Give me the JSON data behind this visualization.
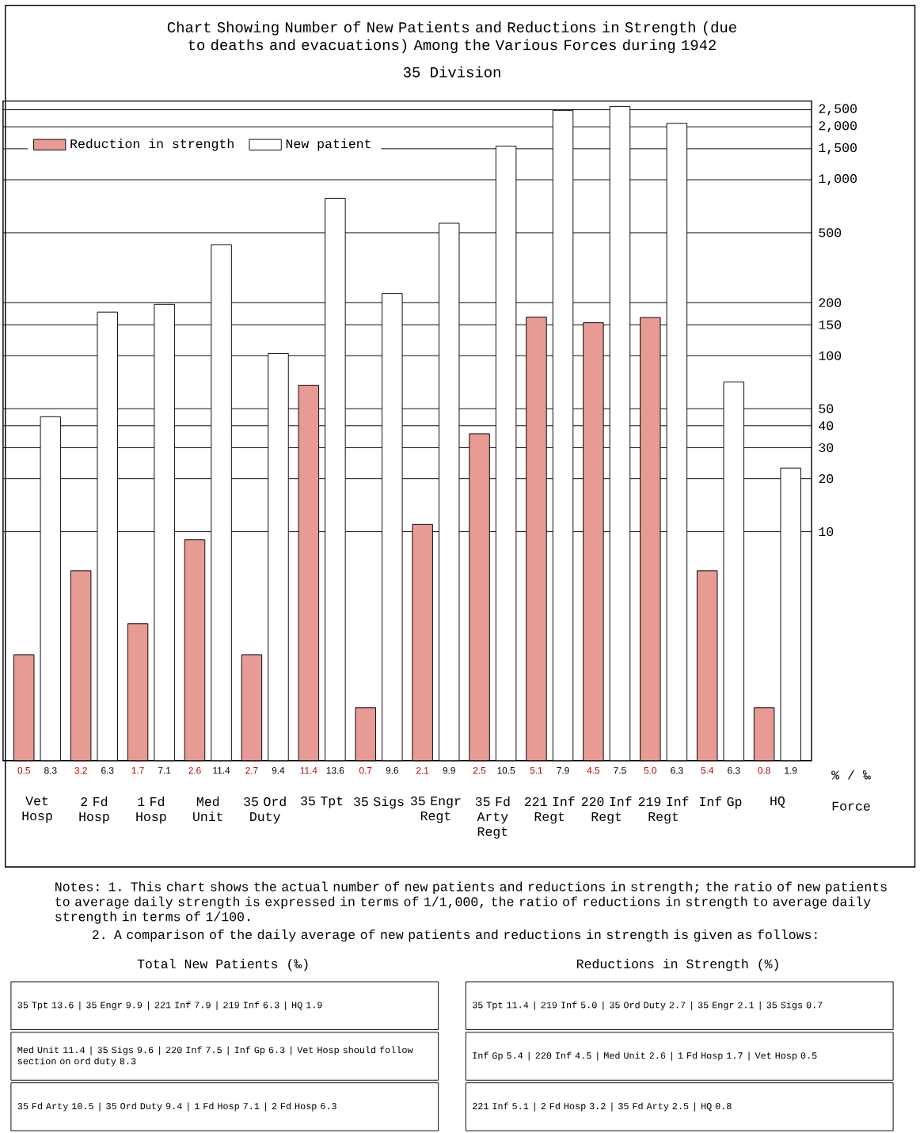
{
  "chart_data": {
    "type": "bar",
    "title": "Chart Showing Number of New Patients and Reductions in Strength (due to deaths and evacuations) Among the Various Forces during 1942",
    "subtitle": "35 Division",
    "xlabel": "Force",
    "categories": [
      "Vet Hosp",
      "2 Fd Hosp",
      "1 Fd Hosp",
      "Med Unit",
      "35 Ord Duty",
      "35 Tpt",
      "35 Sigs",
      "35 Engr Regt",
      "35 Fd Arty Regt",
      "221 Inf Regt",
      "220 Inf Regt",
      "219 Inf Regt",
      "Inf Gp",
      "HQ"
    ],
    "series": [
      {
        "name": "Reduction in strength",
        "color": "#e89a94",
        "values": [
          2,
          6,
          3,
          9,
          2,
          68,
          1,
          11,
          36,
          166,
          154,
          165,
          6,
          1
        ]
      },
      {
        "name": "New patient",
        "color": "#ffffff",
        "values": [
          45,
          177,
          196,
          428,
          103,
          785,
          226,
          566,
          1553,
          2479,
          2611,
          2092,
          71,
          23
        ]
      }
    ],
    "log": true,
    "ylim": [
      0.5,
      2800
    ],
    "yticks": [
      10,
      20,
      30,
      40,
      50,
      100,
      150,
      200,
      500,
      {
        "value": 1000,
        "label": "1,000"
      },
      {
        "value": 1500,
        "label": "1,500"
      },
      {
        "value": 2000,
        "label": "2,000"
      },
      {
        "value": 2500,
        "label": "2,500"
      }
    ],
    "grid": "y",
    "legend": "top left",
    "annotations": [
      "Notes: 1. This chart shows the actual number of new patients and reductions in strength; the ratio of new patients to average daily strength is expressed in terms of 1/1,000, the ratio of reductions in strength to average daily strength in terms of 1/100.",
      "2. A comparison of the daily average of new patients and reductions in strength is given as follows:",
      "Total New Patients (‰)",
      "35 Tpt 13.6 | 35 Engr 9.9 | 221 Inf 7.9 | 219 Inf 6.3 | HQ 1.9",
      "Med Unit 11.4 | 35 Sigs 9.6 | 220 Inf 7.5 | Inf Gp 6.3 | Vet Hosp should follow section on ord duty 8.3",
      "35 Fd Arty 10.5 | 35 Ord Duty 9.4 | 1 Fd Hosp 7.1 | 2 Fd Hosp 6.3",
      "Reductions in Strength (%)",
      "35 Tpt 11.4 | 219 Inf 5.0 | 35 Ord Duty 2.7 | 35 Engr 2.1 | 35 Sigs 0.7",
      "Inf Gp 5.4 | 220 Inf 4.5 | Med Unit 2.6 | 1 Fd Hosp 1.7 | Vet Hosp 0.5",
      "221 Inf 5.1 | 2 Fd Hosp 3.2 | 35 Fd Arty 2.5 | HQ 0.8",
      "% / ‰",
      "0.5",
      "8.3",
      "3.2",
      "6.3",
      "1.7",
      "7.1",
      "2.6",
      "11.4",
      "2.7",
      "9.4",
      "11.4",
      "13.6",
      "0.7",
      "9.6",
      "2.1",
      "9.9",
      "2.5",
      "10.5",
      "5.1",
      "7.9",
      "4.5",
      "7.5",
      "5.0",
      "6.3",
      "5.4",
      "6.3",
      "0.8",
      "1.9"
    ]
  }
}
